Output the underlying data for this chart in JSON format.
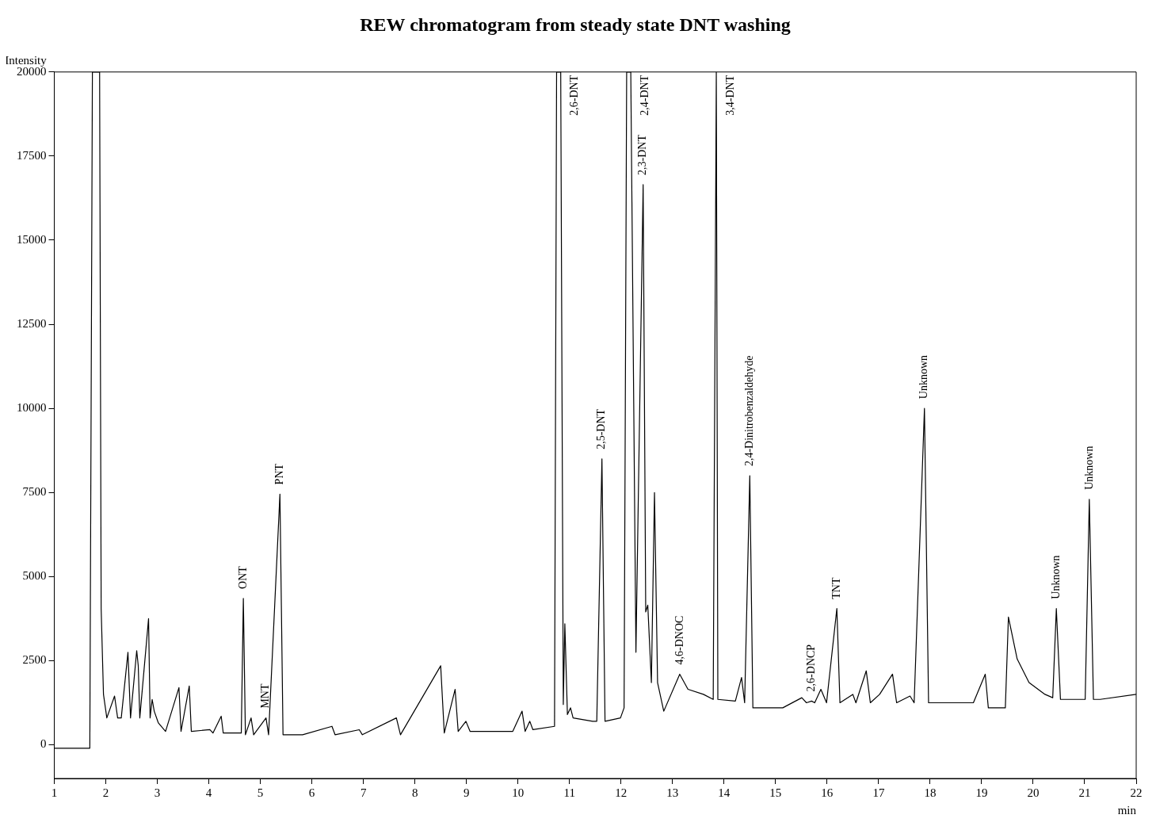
{
  "chart_data": {
    "type": "line",
    "title": "REW chromatogram from steady state DNT washing",
    "xlabel": "min",
    "ylabel": "Intensity",
    "xlim": [
      1,
      22
    ],
    "xticks": [
      1,
      2,
      3,
      4,
      5,
      6,
      7,
      8,
      9,
      10,
      11,
      12,
      13,
      14,
      15,
      16,
      17,
      18,
      19,
      20,
      21,
      22
    ],
    "ylim": [
      -1000,
      20000
    ],
    "yticks": [
      0,
      2500,
      5000,
      7500,
      10000,
      12500,
      15000,
      17500,
      20000
    ],
    "grid": false,
    "legend": false,
    "marker": "none",
    "line_style": "solid",
    "series": [
      {
        "color": "#000000",
        "x": [
          1,
          1.69,
          1.74,
          1.88,
          1.91,
          1.955,
          2.02,
          2.17,
          2.23,
          2.3,
          2.43,
          2.48,
          2.6,
          2.63,
          2.66,
          2.83,
          2.86,
          2.9,
          2.94,
          3.02,
          3.16,
          3.42,
          3.46,
          3.62,
          3.66,
          4.02,
          4.08,
          4.24,
          4.28,
          4.63,
          4.67,
          4.71,
          4.82,
          4.87,
          5.11,
          5.16,
          5.38,
          5.44,
          5.62,
          5.82,
          6.39,
          6.45,
          6.92,
          6.98,
          7.64,
          7.72,
          8.5,
          8.57,
          8.78,
          8.84,
          8.99,
          9.07,
          9.9,
          10.08,
          10.14,
          10.23,
          10.29,
          10.71,
          10.75,
          10.83,
          10.88,
          10.91,
          10.96,
          11.02,
          11.07,
          11.45,
          11.53,
          11.63,
          11.69,
          11.99,
          12.06,
          12.11,
          12.19,
          12.29,
          12.43,
          12.48,
          12.52,
          12.59,
          12.65,
          12.71,
          12.83,
          13.14,
          13.3,
          13.6,
          13.79,
          13.85,
          13.88,
          14.22,
          14.34,
          14.4,
          14.5,
          14.56,
          14.76,
          15.14,
          15.51,
          15.6,
          15.7,
          15.76,
          15.88,
          15.99,
          16.19,
          16.25,
          16.5,
          16.56,
          16.76,
          16.84,
          17.02,
          17.27,
          17.35,
          17.61,
          17.69,
          17.89,
          17.97,
          18.23,
          18.69,
          18.84,
          19.07,
          19.13,
          19.46,
          19.52,
          19.69,
          19.92,
          20.23,
          20.38,
          20.45,
          20.53,
          21.01,
          21.09,
          21.17,
          21.3,
          22
        ],
        "values": [
          -100,
          -100,
          20000,
          20000,
          4050,
          1500,
          800,
          1450,
          800,
          800,
          2750,
          800,
          2800,
          2350,
          800,
          3750,
          800,
          1350,
          1000,
          650,
          400,
          1700,
          400,
          1750,
          400,
          450,
          350,
          850,
          350,
          350,
          4350,
          300,
          800,
          300,
          800,
          300,
          7450,
          300,
          300,
          300,
          550,
          300,
          450,
          300,
          800,
          300,
          2350,
          350,
          1650,
          400,
          700,
          400,
          400,
          1000,
          400,
          700,
          450,
          550,
          20000,
          20000,
          1200,
          3600,
          900,
          1100,
          800,
          700,
          700,
          8500,
          700,
          800,
          1100,
          20000,
          20000,
          2750,
          16650,
          3950,
          4150,
          1850,
          7500,
          1850,
          1000,
          2100,
          1650,
          1500,
          1350,
          20000,
          1350,
          1300,
          2000,
          1250,
          8000,
          1100,
          1100,
          1100,
          1400,
          1250,
          1300,
          1250,
          1650,
          1250,
          4050,
          1250,
          1500,
          1250,
          2200,
          1250,
          1500,
          2100,
          1250,
          1450,
          1250,
          10000,
          1250,
          1250,
          1250,
          1250,
          2100,
          1100,
          1100,
          3800,
          2550,
          1850,
          1500,
          1400,
          4050,
          1350,
          1350,
          7300,
          1350,
          1350,
          1500
        ]
      }
    ],
    "annotations": [
      {
        "text": "ONT",
        "x": 4.67,
        "y": 4350
      },
      {
        "text": "MNT",
        "x": 5.11,
        "y": 800
      },
      {
        "text": "PNT",
        "x": 5.38,
        "y": 7450
      },
      {
        "text": "2,6-DNT",
        "x": 10.83,
        "y": 20000
      },
      {
        "text": "2,5-DNT",
        "x": 11.63,
        "y": 8500
      },
      {
        "text": "2,4-DNT",
        "x": 12.19,
        "y": 20000
      },
      {
        "text": "2,3-DNT",
        "x": 12.43,
        "y": 16650
      },
      {
        "text": "4,6-DNOC",
        "x": 13.14,
        "y": 2100
      },
      {
        "text": "3,4-DNT",
        "x": 13.85,
        "y": 20000
      },
      {
        "text": "2,4-Dinitrobenzaldehyde",
        "x": 14.5,
        "y": 8000
      },
      {
        "text": "2,6-DNCP",
        "x": 15.7,
        "y": 1300
      },
      {
        "text": "TNT",
        "x": 16.19,
        "y": 4050
      },
      {
        "text": "Unknown",
        "x": 17.89,
        "y": 10000
      },
      {
        "text": "Unknown",
        "x": 20.45,
        "y": 4050
      },
      {
        "text": "Unknown",
        "x": 21.09,
        "y": 7300
      }
    ]
  }
}
